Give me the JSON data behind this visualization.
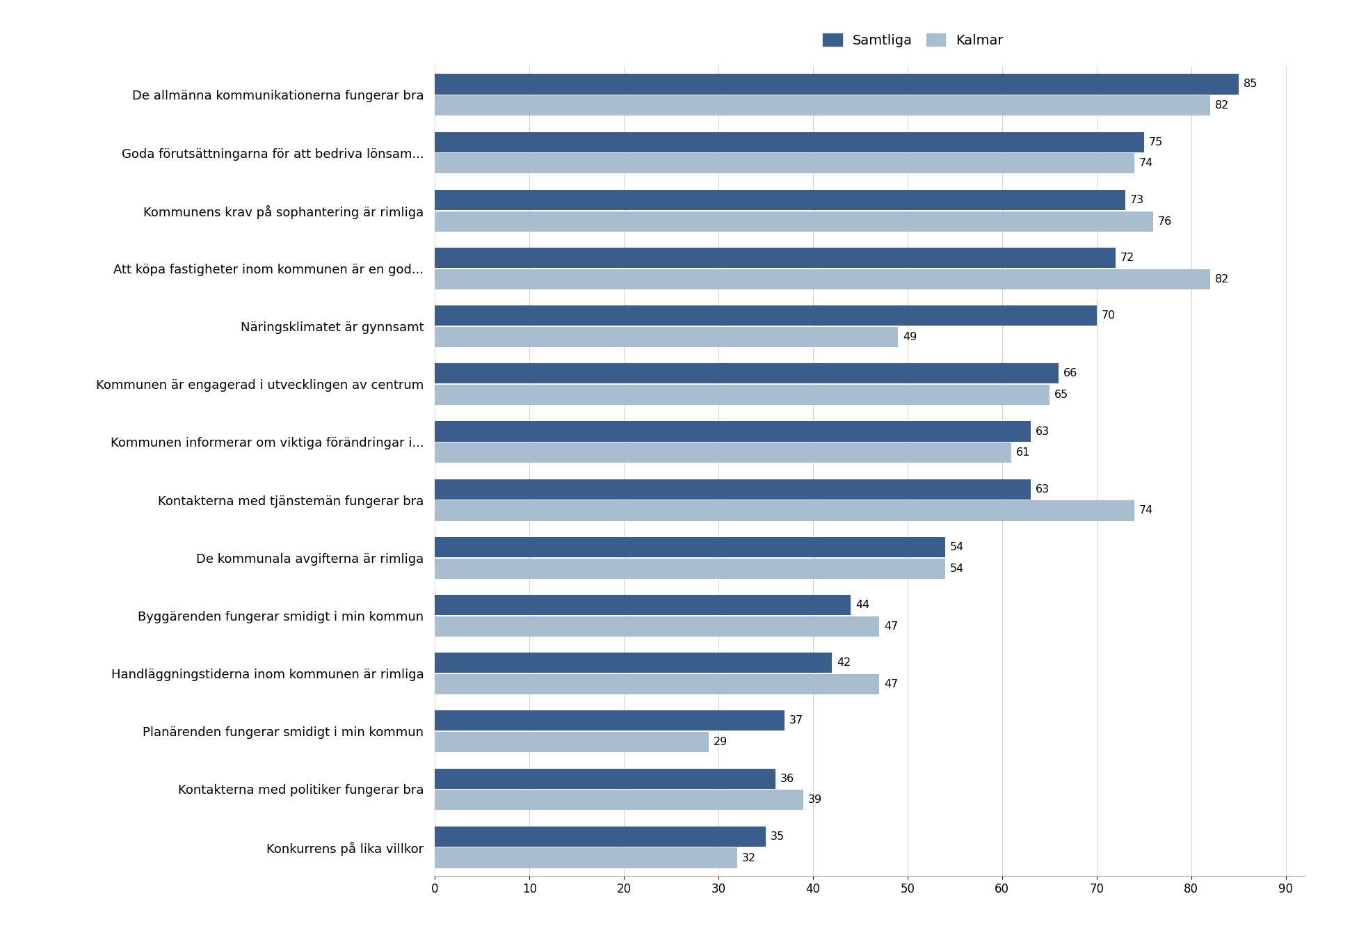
{
  "categories": [
    "De allmänna kommunikationerna fungerar bra",
    "Goda förutsättningarna för att bedriva lönsam...",
    "Kommunens krav på sophantering är rimliga",
    "Att köpa fastigheter inom kommunen är en god...",
    "Näringsklimatet är gynnsamt",
    "Kommunen är engagerad i utvecklingen av centrum",
    "Kommunen informerar om viktiga förändringar i...",
    "Kontakterna med tjänstemän fungerar bra",
    "De kommunala avgifterna är rimliga",
    "Byggärenden fungerar smidigt i min kommun",
    "Handläggningstiderna inom kommunen är rimliga",
    "Planärenden fungerar smidigt i min kommun",
    "Kontakterna med politiker fungerar bra",
    "Konkurrens på lika villkor"
  ],
  "samtliga": [
    85,
    75,
    73,
    72,
    70,
    66,
    63,
    63,
    54,
    44,
    42,
    37,
    36,
    35
  ],
  "kalmar": [
    82,
    74,
    76,
    82,
    49,
    65,
    61,
    74,
    54,
    47,
    47,
    29,
    39,
    32
  ],
  "color_samtliga": "#3A5E8C",
  "color_kalmar": "#A8BECE",
  "xlabel_ticks": [
    0,
    10,
    20,
    30,
    40,
    50,
    60,
    70,
    80,
    90
  ],
  "xlim": [
    0,
    92
  ],
  "legend_samtliga": "Samtliga",
  "legend_kalmar": "Kalmar",
  "bar_height": 0.35,
  "figsize": [
    19.54,
    13.54
  ],
  "dpi": 100,
  "background_color": "#FFFFFF"
}
